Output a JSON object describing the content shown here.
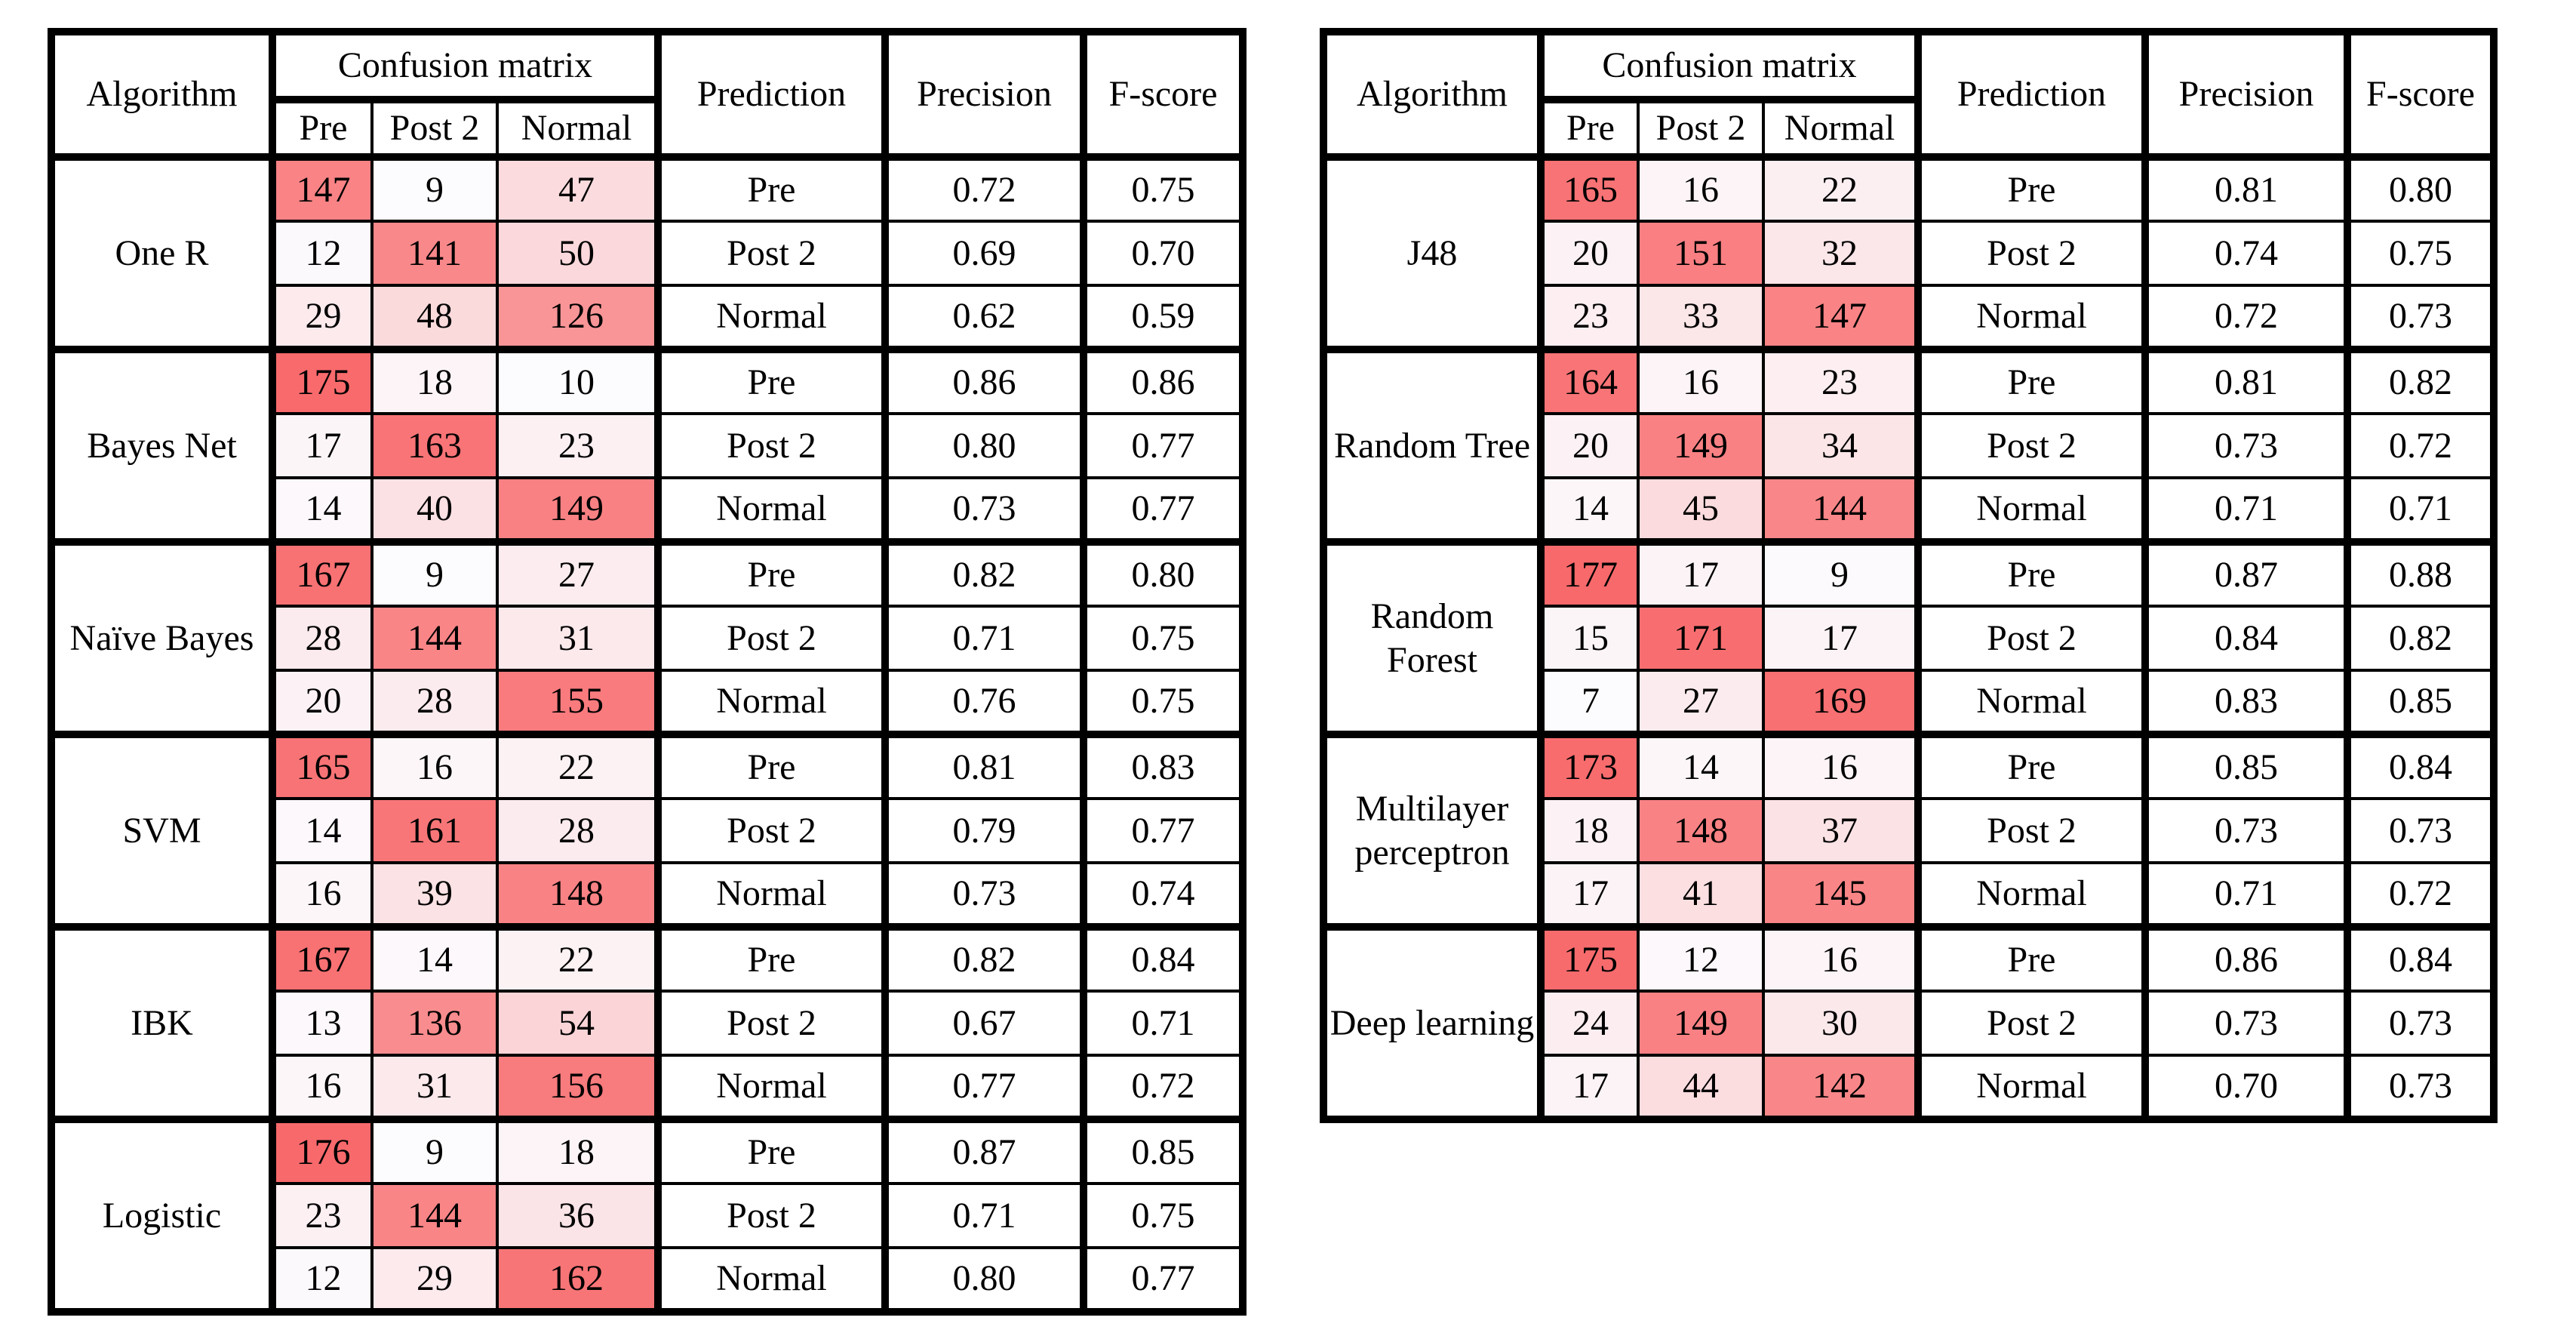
{
  "columns": {
    "algorithm": "Algorithm",
    "confusion": "Confusion matrix",
    "pre": "Pre",
    "post2": "Post 2",
    "normal": "Normal",
    "prediction": "Prediction",
    "precision": "Precision",
    "fscore": "F-score"
  },
  "heatmap": {
    "min_color": "#FCFCFF",
    "max_color": "#F8696B"
  },
  "tables": [
    {
      "name": "left-results-table",
      "groups": [
        {
          "algorithm": "One R",
          "rows": [
            {
              "matrix": [
                147,
                9,
                47
              ],
              "prediction": "Pre",
              "precision": "0.72",
              "fscore": "0.75"
            },
            {
              "matrix": [
                12,
                141,
                50
              ],
              "prediction": "Post 2",
              "precision": "0.69",
              "fscore": "0.70"
            },
            {
              "matrix": [
                29,
                48,
                126
              ],
              "prediction": "Normal",
              "precision": "0.62",
              "fscore": "0.59"
            }
          ]
        },
        {
          "algorithm": "Bayes Net",
          "rows": [
            {
              "matrix": [
                175,
                18,
                10
              ],
              "prediction": "Pre",
              "precision": "0.86",
              "fscore": "0.86"
            },
            {
              "matrix": [
                17,
                163,
                23
              ],
              "prediction": "Post 2",
              "precision": "0.80",
              "fscore": "0.77"
            },
            {
              "matrix": [
                14,
                40,
                149
              ],
              "prediction": "Normal",
              "precision": "0.73",
              "fscore": "0.77"
            }
          ]
        },
        {
          "algorithm": "Naïve Bayes",
          "rows": [
            {
              "matrix": [
                167,
                9,
                27
              ],
              "prediction": "Pre",
              "precision": "0.82",
              "fscore": "0.80"
            },
            {
              "matrix": [
                28,
                144,
                31
              ],
              "prediction": "Post 2",
              "precision": "0.71",
              "fscore": "0.75"
            },
            {
              "matrix": [
                20,
                28,
                155
              ],
              "prediction": "Normal",
              "precision": "0.76",
              "fscore": "0.75"
            }
          ]
        },
        {
          "algorithm": "SVM",
          "rows": [
            {
              "matrix": [
                165,
                16,
                22
              ],
              "prediction": "Pre",
              "precision": "0.81",
              "fscore": "0.83"
            },
            {
              "matrix": [
                14,
                161,
                28
              ],
              "prediction": "Post 2",
              "precision": "0.79",
              "fscore": "0.77"
            },
            {
              "matrix": [
                16,
                39,
                148
              ],
              "prediction": "Normal",
              "precision": "0.73",
              "fscore": "0.74"
            }
          ]
        },
        {
          "algorithm": "IBK",
          "rows": [
            {
              "matrix": [
                167,
                14,
                22
              ],
              "prediction": "Pre",
              "precision": "0.82",
              "fscore": "0.84"
            },
            {
              "matrix": [
                13,
                136,
                54
              ],
              "prediction": "Post 2",
              "precision": "0.67",
              "fscore": "0.71"
            },
            {
              "matrix": [
                16,
                31,
                156
              ],
              "prediction": "Normal",
              "precision": "0.77",
              "fscore": "0.72"
            }
          ]
        },
        {
          "algorithm": "Logistic",
          "rows": [
            {
              "matrix": [
                176,
                9,
                18
              ],
              "prediction": "Pre",
              "precision": "0.87",
              "fscore": "0.85"
            },
            {
              "matrix": [
                23,
                144,
                36
              ],
              "prediction": "Post 2",
              "precision": "0.71",
              "fscore": "0.75"
            },
            {
              "matrix": [
                12,
                29,
                162
              ],
              "prediction": "Normal",
              "precision": "0.80",
              "fscore": "0.77"
            }
          ]
        }
      ]
    },
    {
      "name": "right-results-table",
      "groups": [
        {
          "algorithm": "J48",
          "rows": [
            {
              "matrix": [
                165,
                16,
                22
              ],
              "prediction": "Pre",
              "precision": "0.81",
              "fscore": "0.80"
            },
            {
              "matrix": [
                20,
                151,
                32
              ],
              "prediction": "Post 2",
              "precision": "0.74",
              "fscore": "0.75"
            },
            {
              "matrix": [
                23,
                33,
                147
              ],
              "prediction": "Normal",
              "precision": "0.72",
              "fscore": "0.73"
            }
          ]
        },
        {
          "algorithm": "Random Tree",
          "rows": [
            {
              "matrix": [
                164,
                16,
                23
              ],
              "prediction": "Pre",
              "precision": "0.81",
              "fscore": "0.82"
            },
            {
              "matrix": [
                20,
                149,
                34
              ],
              "prediction": "Post 2",
              "precision": "0.73",
              "fscore": "0.72"
            },
            {
              "matrix": [
                14,
                45,
                144
              ],
              "prediction": "Normal",
              "precision": "0.71",
              "fscore": "0.71"
            }
          ]
        },
        {
          "algorithm": "Random Forest",
          "rows": [
            {
              "matrix": [
                177,
                17,
                9
              ],
              "prediction": "Pre",
              "precision": "0.87",
              "fscore": "0.88"
            },
            {
              "matrix": [
                15,
                171,
                17
              ],
              "prediction": "Post 2",
              "precision": "0.84",
              "fscore": "0.82"
            },
            {
              "matrix": [
                7,
                27,
                169
              ],
              "prediction": "Normal",
              "precision": "0.83",
              "fscore": "0.85"
            }
          ]
        },
        {
          "algorithm": "Multilayer perceptron",
          "rows": [
            {
              "matrix": [
                173,
                14,
                16
              ],
              "prediction": "Pre",
              "precision": "0.85",
              "fscore": "0.84"
            },
            {
              "matrix": [
                18,
                148,
                37
              ],
              "prediction": "Post 2",
              "precision": "0.73",
              "fscore": "0.73"
            },
            {
              "matrix": [
                17,
                41,
                145
              ],
              "prediction": "Normal",
              "precision": "0.71",
              "fscore": "0.72"
            }
          ]
        },
        {
          "algorithm": "Deep learning",
          "rows": [
            {
              "matrix": [
                175,
                12,
                16
              ],
              "prediction": "Pre",
              "precision": "0.86",
              "fscore": "0.84"
            },
            {
              "matrix": [
                24,
                149,
                30
              ],
              "prediction": "Post 2",
              "precision": "0.73",
              "fscore": "0.73"
            },
            {
              "matrix": [
                17,
                44,
                142
              ],
              "prediction": "Normal",
              "precision": "0.70",
              "fscore": "0.73"
            }
          ]
        }
      ]
    }
  ]
}
